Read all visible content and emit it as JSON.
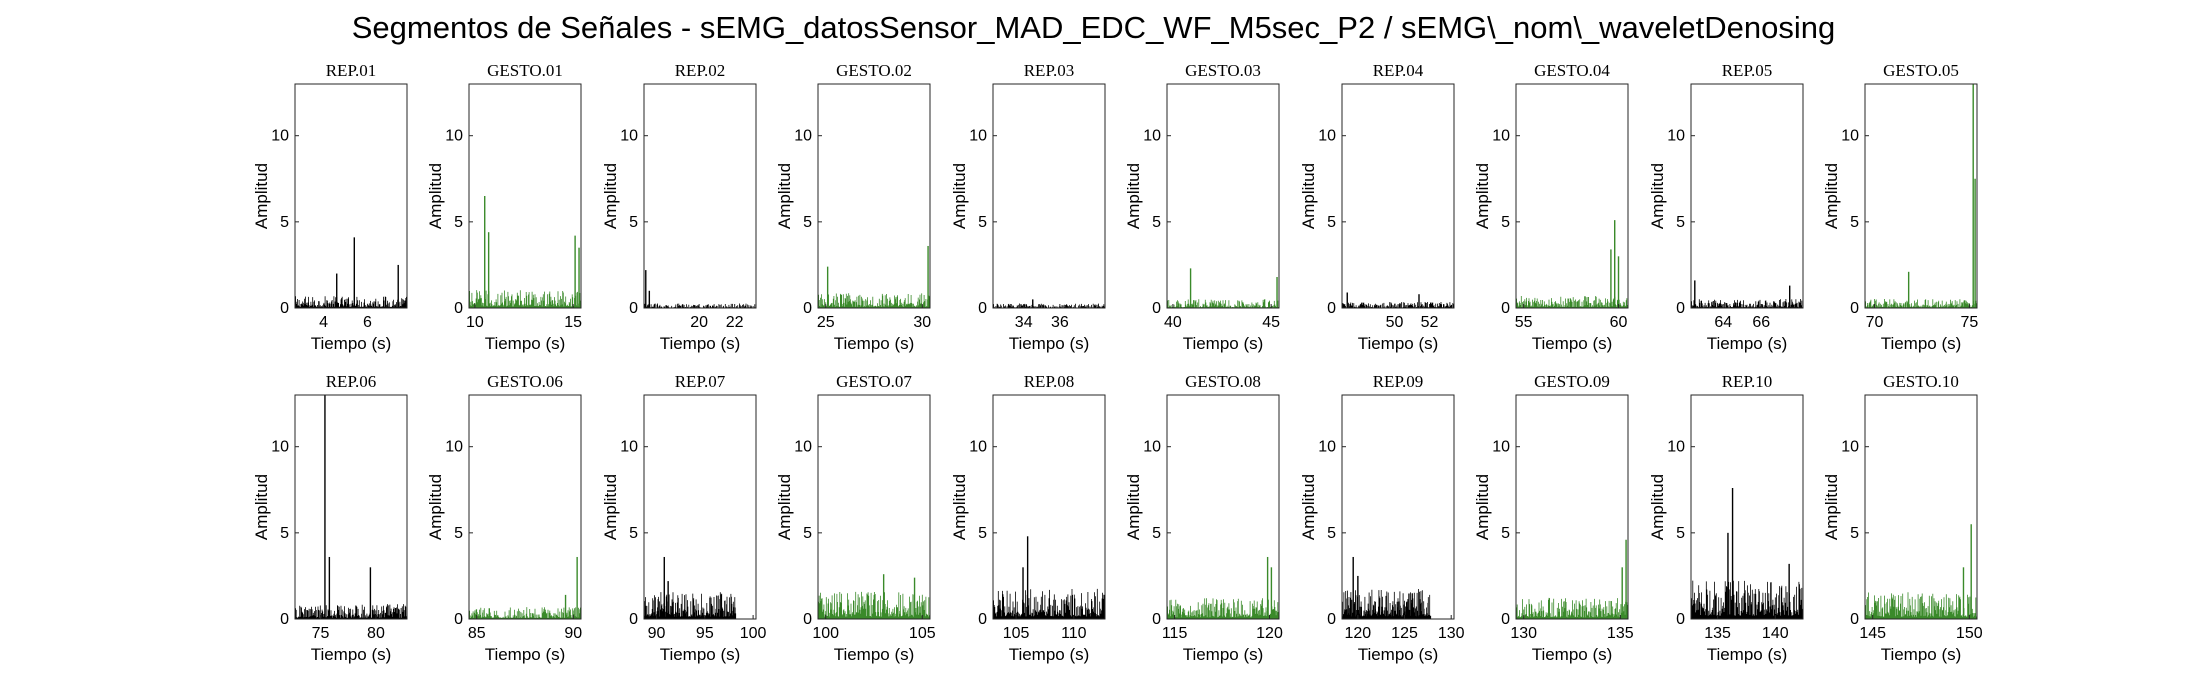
{
  "title": "Segmentos de Señales - sEMG_datosSensor_MAD_EDC_WF_M5sec_P2 / sEMG\\_nom\\_waveletDenosing",
  "colors": {
    "rep": "#000000",
    "gesto": "#3a8a2a"
  },
  "chart_data": {
    "type": "line",
    "grid": false,
    "subplots_layout": "2 rows x 10 columns",
    "common": {
      "xlabel": "Tiempo (s)",
      "ylabel": "Amplitud",
      "ylim": [
        0,
        13
      ],
      "yticks": [
        0,
        5,
        10
      ]
    },
    "panels": [
      {
        "title": "REP_01",
        "kind": "rep",
        "xlim": [
          2.7,
          7.8
        ],
        "xticks": [
          4,
          6
        ],
        "baseline": 0.4,
        "spikes": [
          {
            "x": 5.4,
            "y": 4.1
          },
          {
            "x": 7.4,
            "y": 2.5
          },
          {
            "x": 4.6,
            "y": 2.0
          }
        ]
      },
      {
        "title": "GESTO_01",
        "kind": "gesto",
        "xlim": [
          9.7,
          15.4
        ],
        "xticks": [
          10,
          15
        ],
        "baseline": 0.6,
        "spikes": [
          {
            "x": 10.5,
            "y": 6.5
          },
          {
            "x": 10.7,
            "y": 4.4
          },
          {
            "x": 15.1,
            "y": 4.2
          },
          {
            "x": 15.3,
            "y": 3.5
          }
        ]
      },
      {
        "title": "REP_02",
        "kind": "rep",
        "xlim": [
          16.9,
          23.2
        ],
        "xticks": [
          20,
          22
        ],
        "baseline": 0.15,
        "spikes": [
          {
            "x": 17.0,
            "y": 2.2
          },
          {
            "x": 17.2,
            "y": 1.0
          }
        ]
      },
      {
        "title": "GESTO_02",
        "kind": "gesto",
        "xlim": [
          24.6,
          30.4
        ],
        "xticks": [
          25,
          30
        ],
        "baseline": 0.5,
        "spikes": [
          {
            "x": 25.1,
            "y": 2.4
          },
          {
            "x": 30.3,
            "y": 3.6
          }
        ]
      },
      {
        "title": "REP_03",
        "kind": "rep",
        "xlim": [
          32.3,
          38.5
        ],
        "xticks": [
          34,
          36
        ],
        "baseline": 0.15,
        "spikes": [
          {
            "x": 34.5,
            "y": 0.5
          }
        ]
      },
      {
        "title": "GESTO_03",
        "kind": "gesto",
        "xlim": [
          39.7,
          45.4
        ],
        "xticks": [
          40,
          45
        ],
        "baseline": 0.3,
        "spikes": [
          {
            "x": 40.9,
            "y": 2.3
          },
          {
            "x": 45.3,
            "y": 1.8
          }
        ]
      },
      {
        "title": "REP_04",
        "kind": "rep",
        "xlim": [
          47.0,
          53.4
        ],
        "xticks": [
          50,
          52
        ],
        "baseline": 0.2,
        "spikes": [
          {
            "x": 51.4,
            "y": 0.8
          },
          {
            "x": 47.3,
            "y": 0.9
          }
        ]
      },
      {
        "title": "GESTO_04",
        "kind": "gesto",
        "xlim": [
          54.6,
          60.5
        ],
        "xticks": [
          55,
          60
        ],
        "baseline": 0.4,
        "spikes": [
          {
            "x": 59.8,
            "y": 5.1
          },
          {
            "x": 59.6,
            "y": 3.4
          },
          {
            "x": 60.0,
            "y": 3.0
          }
        ]
      },
      {
        "title": "REP_05",
        "kind": "rep",
        "xlim": [
          62.3,
          68.2
        ],
        "xticks": [
          64,
          66
        ],
        "baseline": 0.3,
        "spikes": [
          {
            "x": 62.5,
            "y": 1.6
          },
          {
            "x": 67.5,
            "y": 1.3
          }
        ]
      },
      {
        "title": "GESTO_05",
        "kind": "gesto",
        "xlim": [
          69.5,
          75.4
        ],
        "xticks": [
          70,
          75
        ],
        "baseline": 0.3,
        "spikes": [
          {
            "x": 75.2,
            "y": 13.0
          },
          {
            "x": 75.3,
            "y": 7.5
          },
          {
            "x": 71.8,
            "y": 2.1
          }
        ]
      },
      {
        "title": "REP_06",
        "kind": "rep",
        "xlim": [
          72.7,
          82.8
        ],
        "xticks": [
          75,
          80
        ],
        "baseline": 0.5,
        "spikes": [
          {
            "x": 75.4,
            "y": 13.0
          },
          {
            "x": 75.8,
            "y": 3.6
          },
          {
            "x": 79.5,
            "y": 3.0
          }
        ]
      },
      {
        "title": "GESTO_06",
        "kind": "gesto",
        "xlim": [
          84.6,
          90.4
        ],
        "xticks": [
          85,
          90
        ],
        "baseline": 0.4,
        "spikes": [
          {
            "x": 90.2,
            "y": 3.6
          },
          {
            "x": 89.6,
            "y": 1.4
          }
        ]
      },
      {
        "title": "REP_07",
        "kind": "rep",
        "xlim": [
          88.7,
          100.3
        ],
        "xticks": [
          90,
          95,
          100
        ],
        "baseline": 0.9,
        "spikes": [
          {
            "x": 90.8,
            "y": 3.6
          },
          {
            "x": 91.2,
            "y": 2.2
          }
        ],
        "data_end": 98.2
      },
      {
        "title": "GESTO_07",
        "kind": "gesto",
        "xlim": [
          99.6,
          105.4
        ],
        "xticks": [
          100,
          105
        ],
        "baseline": 0.9,
        "spikes": [
          {
            "x": 103.0,
            "y": 2.6
          },
          {
            "x": 104.6,
            "y": 2.4
          }
        ]
      },
      {
        "title": "REP_08",
        "kind": "rep",
        "xlim": [
          103.0,
          112.7
        ],
        "xticks": [
          105,
          110
        ],
        "baseline": 1.0,
        "spikes": [
          {
            "x": 106.0,
            "y": 4.8
          },
          {
            "x": 105.6,
            "y": 3.0
          }
        ]
      },
      {
        "title": "GESTO_08",
        "kind": "gesto",
        "xlim": [
          114.6,
          120.5
        ],
        "xticks": [
          115,
          120
        ],
        "baseline": 0.7,
        "spikes": [
          {
            "x": 119.9,
            "y": 3.6
          },
          {
            "x": 120.1,
            "y": 3.0
          }
        ]
      },
      {
        "title": "REP_09",
        "kind": "rep",
        "xlim": [
          118.3,
          130.3
        ],
        "xticks": [
          120,
          125,
          130
        ],
        "baseline": 1.0,
        "spikes": [
          {
            "x": 119.5,
            "y": 3.6
          },
          {
            "x": 120.0,
            "y": 2.5
          }
        ],
        "data_end": 127.8
      },
      {
        "title": "GESTO_09",
        "kind": "gesto",
        "xlim": [
          129.6,
          135.4
        ],
        "xticks": [
          130,
          135
        ],
        "baseline": 0.7,
        "spikes": [
          {
            "x": 135.3,
            "y": 4.6
          },
          {
            "x": 135.1,
            "y": 3.0
          }
        ]
      },
      {
        "title": "REP_10",
        "kind": "rep",
        "xlim": [
          132.7,
          142.4
        ],
        "xticks": [
          135,
          140
        ],
        "baseline": 1.3,
        "spikes": [
          {
            "x": 136.3,
            "y": 7.6
          },
          {
            "x": 135.9,
            "y": 5.0
          },
          {
            "x": 141.2,
            "y": 3.2
          }
        ]
      },
      {
        "title": "GESTO_10",
        "kind": "gesto",
        "xlim": [
          144.6,
          150.4
        ],
        "xticks": [
          145,
          150
        ],
        "baseline": 0.9,
        "spikes": [
          {
            "x": 150.1,
            "y": 5.5
          },
          {
            "x": 149.7,
            "y": 3.0
          }
        ]
      }
    ]
  }
}
